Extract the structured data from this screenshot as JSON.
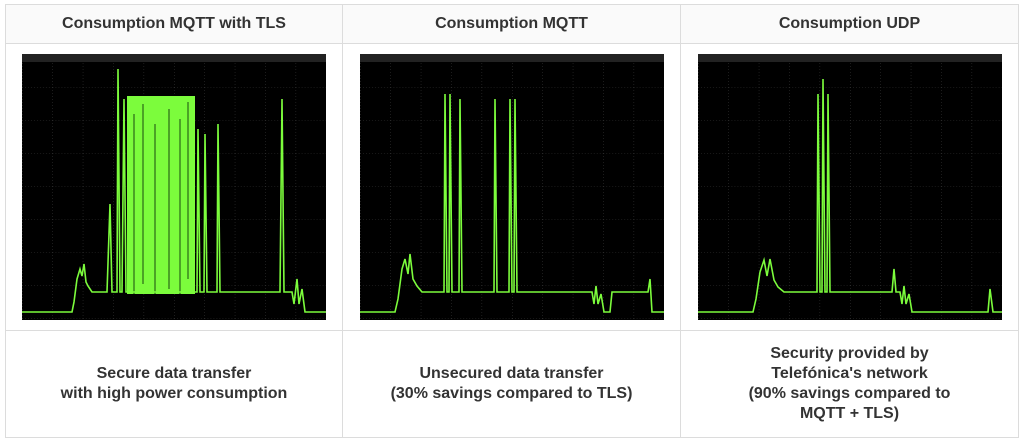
{
  "columns": [
    {
      "title": "Consumption MQTT with TLS",
      "description": [
        "Secure data transfer",
        "with high power consumption"
      ]
    },
    {
      "title": "Consumption MQTT",
      "description": [
        "Unsecured data transfer",
        "(30% savings compared to TLS)"
      ]
    },
    {
      "title": "Consumption UDP",
      "description": [
        "Security provided by",
        "Telefónica's network",
        "(90% savings compared to",
        "MQTT + TLS)"
      ]
    }
  ]
}
